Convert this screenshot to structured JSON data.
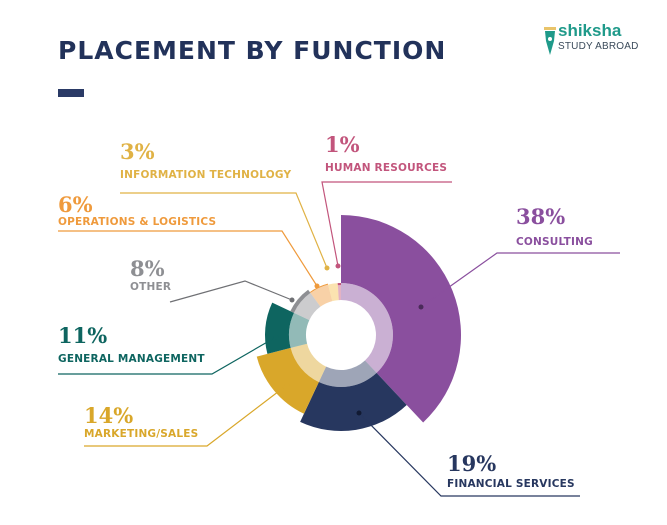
{
  "header": {
    "title": "PLACEMENT BY FUNCTION",
    "logo_line1": "shiksha",
    "logo_line2": "STUDY ABROAD"
  },
  "colors": {
    "title": "#22325a",
    "consulting": "#8a4f9e",
    "financial_services": "#27375f",
    "marketing_sales": "#d9a72a",
    "general_management": "#0e6560",
    "other": "#8e8f93",
    "operations_logistics": "#ef9a3c",
    "information_technology": "#f6c14f",
    "human_resources": "#c2557c"
  },
  "labels": [
    {
      "key": "consulting",
      "pct": "38%",
      "name": "CONSULTING"
    },
    {
      "key": "financial_services",
      "pct": "19%",
      "name": "FINANCIAL SERVICES"
    },
    {
      "key": "marketing_sales",
      "pct": "14%",
      "name": "MARKETING/SALES"
    },
    {
      "key": "general_management",
      "pct": "11%",
      "name": "GENERAL MANAGEMENT"
    },
    {
      "key": "other",
      "pct": "8%",
      "name": "OTHER"
    },
    {
      "key": "operations_logistics",
      "pct": "6%",
      "name": "OPERATIONS & LOGISTICS"
    },
    {
      "key": "information_technology",
      "pct": "3%",
      "name": "INFORMATION TECHNOLOGY"
    },
    {
      "key": "human_resources",
      "pct": "1%",
      "name": "HUMAN RESOURCES"
    }
  ],
  "chart_data": {
    "type": "pie",
    "subtype": "variable-radius donut",
    "title": "PLACEMENT BY FUNCTION",
    "categories": [
      "Consulting",
      "Financial Services",
      "Marketing/Sales",
      "General Management",
      "Other",
      "Operations & Logistics",
      "Information Technology",
      "Human Resources"
    ],
    "values": [
      38,
      19,
      14,
      11,
      8,
      6,
      3,
      1
    ],
    "unit": "%",
    "legend_position": "callout labels around chart"
  }
}
